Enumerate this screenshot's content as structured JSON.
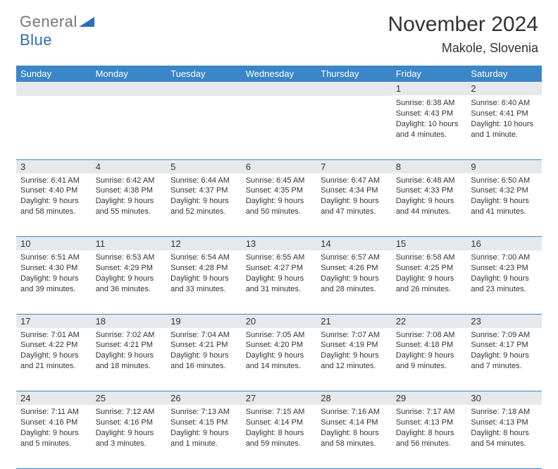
{
  "logo": {
    "text_gray": "General",
    "text_blue": "Blue",
    "shape_color": "#2b6eb8"
  },
  "header": {
    "month_title": "November 2024",
    "location": "Makole, Slovenia"
  },
  "colors": {
    "header_bg": "#3a86c8",
    "header_text": "#ffffff",
    "daynum_bg": "#e6e9ec",
    "row_border": "#3a86c8",
    "body_bg": "#ffffff",
    "text": "#333333"
  },
  "day_headers": [
    "Sunday",
    "Monday",
    "Tuesday",
    "Wednesday",
    "Thursday",
    "Friday",
    "Saturday"
  ],
  "weeks": [
    [
      {
        "n": "",
        "sr": "",
        "ss": "",
        "dl": ""
      },
      {
        "n": "",
        "sr": "",
        "ss": "",
        "dl": ""
      },
      {
        "n": "",
        "sr": "",
        "ss": "",
        "dl": ""
      },
      {
        "n": "",
        "sr": "",
        "ss": "",
        "dl": ""
      },
      {
        "n": "",
        "sr": "",
        "ss": "",
        "dl": ""
      },
      {
        "n": "1",
        "sr": "Sunrise: 6:38 AM",
        "ss": "Sunset: 4:43 PM",
        "dl": "Daylight: 10 hours and 4 minutes."
      },
      {
        "n": "2",
        "sr": "Sunrise: 6:40 AM",
        "ss": "Sunset: 4:41 PM",
        "dl": "Daylight: 10 hours and 1 minute."
      }
    ],
    [
      {
        "n": "3",
        "sr": "Sunrise: 6:41 AM",
        "ss": "Sunset: 4:40 PM",
        "dl": "Daylight: 9 hours and 58 minutes."
      },
      {
        "n": "4",
        "sr": "Sunrise: 6:42 AM",
        "ss": "Sunset: 4:38 PM",
        "dl": "Daylight: 9 hours and 55 minutes."
      },
      {
        "n": "5",
        "sr": "Sunrise: 6:44 AM",
        "ss": "Sunset: 4:37 PM",
        "dl": "Daylight: 9 hours and 52 minutes."
      },
      {
        "n": "6",
        "sr": "Sunrise: 6:45 AM",
        "ss": "Sunset: 4:35 PM",
        "dl": "Daylight: 9 hours and 50 minutes."
      },
      {
        "n": "7",
        "sr": "Sunrise: 6:47 AM",
        "ss": "Sunset: 4:34 PM",
        "dl": "Daylight: 9 hours and 47 minutes."
      },
      {
        "n": "8",
        "sr": "Sunrise: 6:48 AM",
        "ss": "Sunset: 4:33 PM",
        "dl": "Daylight: 9 hours and 44 minutes."
      },
      {
        "n": "9",
        "sr": "Sunrise: 6:50 AM",
        "ss": "Sunset: 4:32 PM",
        "dl": "Daylight: 9 hours and 41 minutes."
      }
    ],
    [
      {
        "n": "10",
        "sr": "Sunrise: 6:51 AM",
        "ss": "Sunset: 4:30 PM",
        "dl": "Daylight: 9 hours and 39 minutes."
      },
      {
        "n": "11",
        "sr": "Sunrise: 6:53 AM",
        "ss": "Sunset: 4:29 PM",
        "dl": "Daylight: 9 hours and 36 minutes."
      },
      {
        "n": "12",
        "sr": "Sunrise: 6:54 AM",
        "ss": "Sunset: 4:28 PM",
        "dl": "Daylight: 9 hours and 33 minutes."
      },
      {
        "n": "13",
        "sr": "Sunrise: 6:55 AM",
        "ss": "Sunset: 4:27 PM",
        "dl": "Daylight: 9 hours and 31 minutes."
      },
      {
        "n": "14",
        "sr": "Sunrise: 6:57 AM",
        "ss": "Sunset: 4:26 PM",
        "dl": "Daylight: 9 hours and 28 minutes."
      },
      {
        "n": "15",
        "sr": "Sunrise: 6:58 AM",
        "ss": "Sunset: 4:25 PM",
        "dl": "Daylight: 9 hours and 26 minutes."
      },
      {
        "n": "16",
        "sr": "Sunrise: 7:00 AM",
        "ss": "Sunset: 4:23 PM",
        "dl": "Daylight: 9 hours and 23 minutes."
      }
    ],
    [
      {
        "n": "17",
        "sr": "Sunrise: 7:01 AM",
        "ss": "Sunset: 4:22 PM",
        "dl": "Daylight: 9 hours and 21 minutes."
      },
      {
        "n": "18",
        "sr": "Sunrise: 7:02 AM",
        "ss": "Sunset: 4:21 PM",
        "dl": "Daylight: 9 hours and 18 minutes."
      },
      {
        "n": "19",
        "sr": "Sunrise: 7:04 AM",
        "ss": "Sunset: 4:21 PM",
        "dl": "Daylight: 9 hours and 16 minutes."
      },
      {
        "n": "20",
        "sr": "Sunrise: 7:05 AM",
        "ss": "Sunset: 4:20 PM",
        "dl": "Daylight: 9 hours and 14 minutes."
      },
      {
        "n": "21",
        "sr": "Sunrise: 7:07 AM",
        "ss": "Sunset: 4:19 PM",
        "dl": "Daylight: 9 hours and 12 minutes."
      },
      {
        "n": "22",
        "sr": "Sunrise: 7:08 AM",
        "ss": "Sunset: 4:18 PM",
        "dl": "Daylight: 9 hours and 9 minutes."
      },
      {
        "n": "23",
        "sr": "Sunrise: 7:09 AM",
        "ss": "Sunset: 4:17 PM",
        "dl": "Daylight: 9 hours and 7 minutes."
      }
    ],
    [
      {
        "n": "24",
        "sr": "Sunrise: 7:11 AM",
        "ss": "Sunset: 4:16 PM",
        "dl": "Daylight: 9 hours and 5 minutes."
      },
      {
        "n": "25",
        "sr": "Sunrise: 7:12 AM",
        "ss": "Sunset: 4:16 PM",
        "dl": "Daylight: 9 hours and 3 minutes."
      },
      {
        "n": "26",
        "sr": "Sunrise: 7:13 AM",
        "ss": "Sunset: 4:15 PM",
        "dl": "Daylight: 9 hours and 1 minute."
      },
      {
        "n": "27",
        "sr": "Sunrise: 7:15 AM",
        "ss": "Sunset: 4:14 PM",
        "dl": "Daylight: 8 hours and 59 minutes."
      },
      {
        "n": "28",
        "sr": "Sunrise: 7:16 AM",
        "ss": "Sunset: 4:14 PM",
        "dl": "Daylight: 8 hours and 58 minutes."
      },
      {
        "n": "29",
        "sr": "Sunrise: 7:17 AM",
        "ss": "Sunset: 4:13 PM",
        "dl": "Daylight: 8 hours and 56 minutes."
      },
      {
        "n": "30",
        "sr": "Sunrise: 7:18 AM",
        "ss": "Sunset: 4:13 PM",
        "dl": "Daylight: 8 hours and 54 minutes."
      }
    ]
  ]
}
